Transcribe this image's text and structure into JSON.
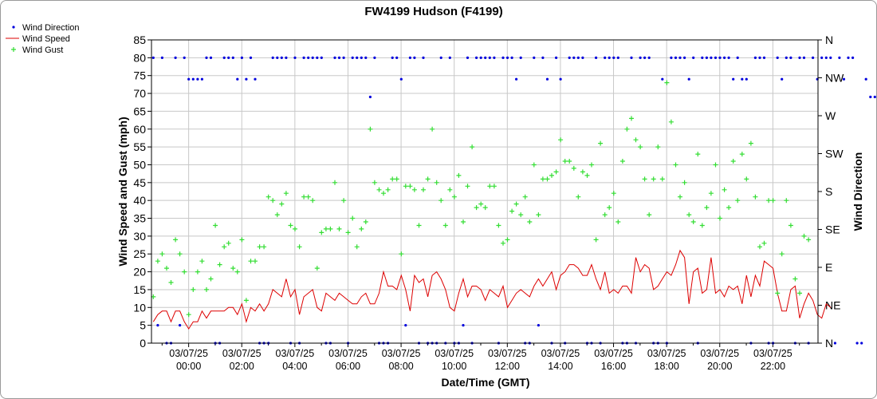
{
  "chart_data": {
    "type": "line",
    "title": "FW4199 Hudson (F4199)",
    "xlabel": "Date/Time (GMT)",
    "ylabel": "Wind Speed and Gust (mph)",
    "y2label": "Wind Direction",
    "ylim": [
      0,
      85
    ],
    "yticks": [
      0,
      5,
      10,
      15,
      20,
      25,
      30,
      35,
      40,
      45,
      50,
      55,
      60,
      65,
      70,
      75,
      80,
      85
    ],
    "y2ticks": [
      "N",
      "NE",
      "E",
      "SE",
      "S",
      "SW",
      "W",
      "NW",
      "N"
    ],
    "xlim_hours": [
      -1.4,
      23.7
    ],
    "x_ticks": [
      {
        "hour": 0,
        "date": "03/07/25",
        "time": "00:00"
      },
      {
        "hour": 2,
        "date": "03/07/25",
        "time": "02:00"
      },
      {
        "hour": 4,
        "date": "03/07/25",
        "time": "04:00"
      },
      {
        "hour": 6,
        "date": "03/07/25",
        "time": "06:00"
      },
      {
        "hour": 8,
        "date": "03/07/25",
        "time": "08:00"
      },
      {
        "hour": 10,
        "date": "03/07/25",
        "time": "10:00"
      },
      {
        "hour": 12,
        "date": "03/07/25",
        "time": "12:00"
      },
      {
        "hour": 14,
        "date": "03/07/25",
        "time": "14:00"
      },
      {
        "hour": 16,
        "date": "03/07/25",
        "time": "16:00"
      },
      {
        "hour": 18,
        "date": "03/07/25",
        "time": "18:00"
      },
      {
        "hour": 20,
        "date": "03/07/25",
        "time": "20:00"
      },
      {
        "hour": 22,
        "date": "03/07/25",
        "time": "22:00"
      }
    ],
    "grid": true,
    "legend_position": "top-left",
    "series": [
      {
        "name": "Wind Direction",
        "color": "#0000dd",
        "marker": "dot",
        "axis": "right",
        "x_start": -1.33,
        "x_step": 0.1667,
        "values": [
          80,
          5,
          80,
          0,
          0,
          80,
          5,
          80,
          74,
          74,
          74,
          74,
          80,
          80,
          0,
          0,
          80,
          80,
          80,
          74,
          80,
          74,
          80,
          74,
          0,
          0,
          0,
          80,
          80,
          80,
          80,
          0,
          80,
          0,
          80,
          80,
          80,
          80,
          80,
          0,
          0,
          80,
          80,
          80,
          0,
          80,
          80,
          80,
          80,
          69,
          80,
          0,
          0,
          0,
          80,
          80,
          74,
          5,
          80,
          80,
          0,
          80,
          0,
          0,
          0,
          80,
          0,
          80,
          0,
          0,
          5,
          80,
          0,
          80,
          80,
          80,
          80,
          80,
          0,
          80,
          80,
          80,
          74,
          80,
          0,
          0,
          80,
          5,
          80,
          74,
          0,
          80,
          74,
          0,
          80,
          80,
          80,
          80,
          0,
          0,
          80,
          0,
          80,
          80,
          80,
          80,
          0,
          0,
          80,
          0,
          80,
          80,
          80,
          0,
          0,
          74,
          0,
          80,
          80,
          80,
          80,
          74,
          80,
          0,
          80,
          80,
          80,
          80,
          80,
          80,
          80,
          74,
          80,
          74,
          74,
          0,
          80,
          80,
          80,
          0,
          0,
          80,
          74,
          80,
          80,
          0,
          80,
          80,
          0,
          80,
          74,
          80,
          80,
          80,
          0,
          80,
          74,
          80,
          80,
          0,
          0,
          74,
          69,
          69
        ]
      },
      {
        "name": "Wind Speed",
        "color": "#dd0000",
        "marker": "line",
        "axis": "left",
        "x_start": -1.33,
        "x_step": 0.1667,
        "values": [
          6,
          8,
          9,
          9,
          6,
          9,
          9,
          6,
          4,
          6,
          6,
          9,
          7,
          9,
          9,
          9,
          9,
          10,
          10,
          8,
          11,
          6,
          10,
          9,
          11,
          9,
          11,
          15,
          14,
          13,
          18,
          13,
          15,
          8,
          13,
          14,
          15,
          10,
          9,
          14,
          13,
          12,
          14,
          13,
          12,
          11,
          11,
          13,
          14,
          11,
          11,
          14,
          20,
          16,
          16,
          15,
          19,
          15,
          9,
          19,
          17,
          18,
          13,
          19,
          20,
          18,
          15,
          10,
          9,
          14,
          18,
          13,
          16,
          16,
          15,
          12,
          15,
          14,
          13,
          16,
          10,
          12,
          14,
          15,
          14,
          13,
          16,
          18,
          16,
          18,
          20,
          15,
          19,
          20,
          22,
          22,
          21,
          19,
          19,
          22,
          18,
          15,
          20,
          14,
          15,
          14,
          16,
          16,
          14,
          24,
          20,
          22,
          21,
          15,
          16,
          18,
          20,
          19,
          22,
          26,
          24,
          11,
          20,
          21,
          14,
          15,
          24,
          14,
          15,
          13,
          16,
          15,
          16,
          11,
          19,
          13,
          19,
          16,
          23,
          22,
          21,
          14,
          9,
          9,
          15,
          16,
          7,
          11,
          14,
          12,
          8,
          7,
          11,
          10
        ]
      },
      {
        "name": "Wind Gust",
        "color": "#33dd33",
        "marker": "plus",
        "axis": "left",
        "x_start": -1.33,
        "x_step": 0.1667,
        "values": [
          13,
          23,
          25,
          21,
          17,
          29,
          25,
          20,
          8,
          15,
          20,
          23,
          15,
          18,
          33,
          22,
          27,
          28,
          21,
          20,
          29,
          12,
          23,
          23,
          27,
          27,
          41,
          40,
          36,
          39,
          42,
          33,
          32,
          27,
          41,
          41,
          40,
          21,
          31,
          32,
          32,
          45,
          32,
          40,
          31,
          35,
          27,
          32,
          34,
          60,
          45,
          43,
          42,
          43,
          46,
          46,
          25,
          44,
          44,
          43,
          33,
          43,
          46,
          60,
          45,
          40,
          33,
          43,
          41,
          47,
          34,
          44,
          55,
          38,
          39,
          38,
          44,
          44,
          33,
          28,
          29,
          37,
          39,
          36,
          41,
          34,
          50,
          36,
          46,
          46,
          47,
          48,
          57,
          51,
          51,
          49,
          41,
          48,
          47,
          50,
          29,
          56,
          36,
          38,
          42,
          34,
          51,
          60,
          63,
          57,
          55,
          46,
          36,
          46,
          55,
          46,
          73,
          62,
          50,
          41,
          45,
          36,
          34,
          53,
          33,
          38,
          42,
          50,
          35,
          43,
          38,
          51,
          40,
          53,
          46,
          56,
          41,
          27,
          28,
          40,
          40,
          14,
          25,
          40,
          33,
          18,
          14,
          30,
          29
        ]
      }
    ]
  }
}
